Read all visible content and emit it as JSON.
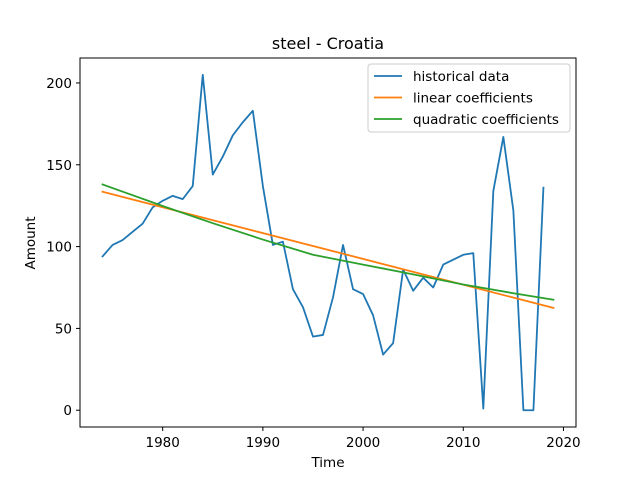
{
  "chart_data": {
    "type": "line",
    "title": "steel - Croatia",
    "xlabel": "Time",
    "ylabel": "Amount",
    "xlim": [
      1971.75,
      2021.25
    ],
    "ylim": [
      -10.25,
      215.25
    ],
    "xticks": [
      1980,
      1990,
      2000,
      2010,
      2020
    ],
    "yticks": [
      0,
      50,
      100,
      150,
      200
    ],
    "grid": false,
    "legend_position": "top-right",
    "series": [
      {
        "name": "historical data",
        "color": "#1f77b4",
        "x": [
          1974,
          1975,
          1976,
          1977,
          1978,
          1979,
          1980,
          1981,
          1982,
          1983,
          1984,
          1985,
          1986,
          1987,
          1988,
          1989,
          1990,
          1991,
          1992,
          1993,
          1994,
          1995,
          1996,
          1997,
          1998,
          1999,
          2000,
          2001,
          2002,
          2003,
          2004,
          2005,
          2006,
          2007,
          2008,
          2009,
          2010,
          2011,
          2012,
          2013,
          2014,
          2015,
          2016,
          2017,
          2018
        ],
        "y": [
          94,
          101,
          104,
          109,
          114,
          124,
          128,
          131,
          129,
          137,
          205,
          144,
          155,
          168,
          176,
          183,
          137,
          101,
          103,
          74,
          63,
          45,
          46,
          69,
          101,
          74,
          71,
          58,
          34,
          41,
          86,
          73,
          81,
          75,
          89,
          92,
          95,
          96,
          1,
          134,
          167,
          122,
          0,
          0,
          136
        ]
      },
      {
        "name": "linear coefficients",
        "color": "#ff7f0e",
        "x": [
          1974,
          2019
        ],
        "y": [
          133.5,
          62.5
        ]
      },
      {
        "name": "quadratic coefficients",
        "color": "#2ca02c",
        "x": [
          1974,
          1980,
          1985,
          1990,
          1995,
          2000,
          2005,
          2010,
          2015,
          2019
        ],
        "y": [
          138.0,
          124.8,
          114.3,
          104.3,
          95.0,
          89.0,
          83.0,
          76.8,
          71.5,
          67.5
        ]
      }
    ]
  }
}
